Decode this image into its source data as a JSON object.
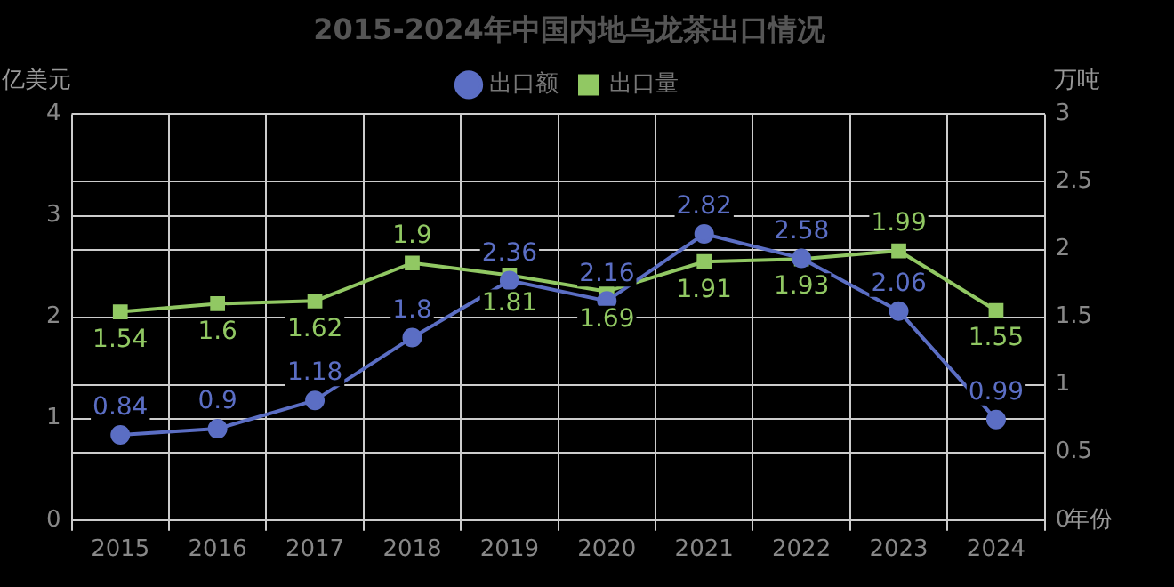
{
  "chart_data": {
    "type": "line",
    "title": "2015-2024年中国内地乌龙茶出口情况",
    "ylabel": "亿美元",
    "y2label": "万吨",
    "xlabel": "年份",
    "categories": [
      "2015",
      "2016",
      "2017",
      "2018",
      "2019",
      "2020",
      "2021",
      "2022",
      "2023",
      "2024"
    ],
    "series": [
      {
        "name": "出口额",
        "color": "#5b6ec4",
        "marker": "circle",
        "values": [
          0.84,
          0.9,
          1.18,
          1.8,
          2.36,
          2.16,
          2.82,
          2.58,
          2.06,
          0.99
        ]
      },
      {
        "name": "出口量",
        "color": "#91c863",
        "marker": "square",
        "axis": "y2",
        "values": [
          1.54,
          1.6,
          1.62,
          1.9,
          1.81,
          1.69,
          1.91,
          1.93,
          1.99,
          1.55
        ]
      }
    ],
    "ylim": [
      0,
      4
    ],
    "yticks": [
      0,
      1,
      2,
      3,
      4
    ],
    "y2lim": [
      0,
      3
    ],
    "y2ticks": [
      0,
      0.5,
      1,
      1.5,
      2,
      2.5,
      3
    ],
    "grid": true,
    "legend": "top",
    "data_labels": true
  }
}
